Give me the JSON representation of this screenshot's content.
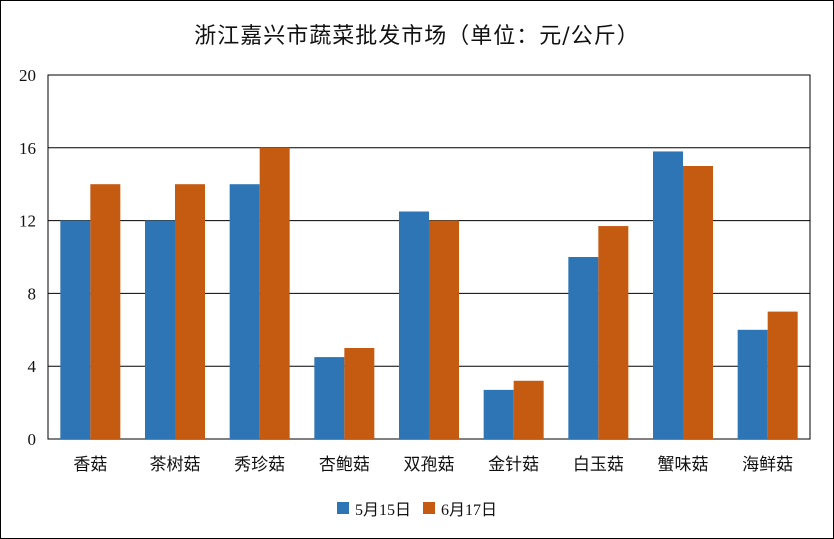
{
  "chart_data": {
    "type": "bar",
    "title": "浙江嘉兴市蔬菜批发市场（单位：元/公斤）",
    "categories": [
      "香菇",
      "茶树菇",
      "秀珍菇",
      "杏鲍菇",
      "双孢菇",
      "金针菇",
      "白玉菇",
      "蟹味菇",
      "海鲜菇"
    ],
    "series": [
      {
        "name": "5月15日",
        "color": "#2e75b6",
        "values": [
          12,
          12,
          14,
          4.5,
          12.5,
          2.7,
          10,
          15.8,
          6
        ]
      },
      {
        "name": "6月17日",
        "color": "#c55a11",
        "values": [
          14,
          14,
          16,
          5,
          12,
          3.2,
          11.7,
          15,
          7
        ]
      }
    ],
    "ylim": [
      0,
      20
    ],
    "yticks": [
      "0",
      "4",
      "8",
      "12",
      "16",
      "20"
    ],
    "grid": true,
    "legend_position": "bottom"
  }
}
